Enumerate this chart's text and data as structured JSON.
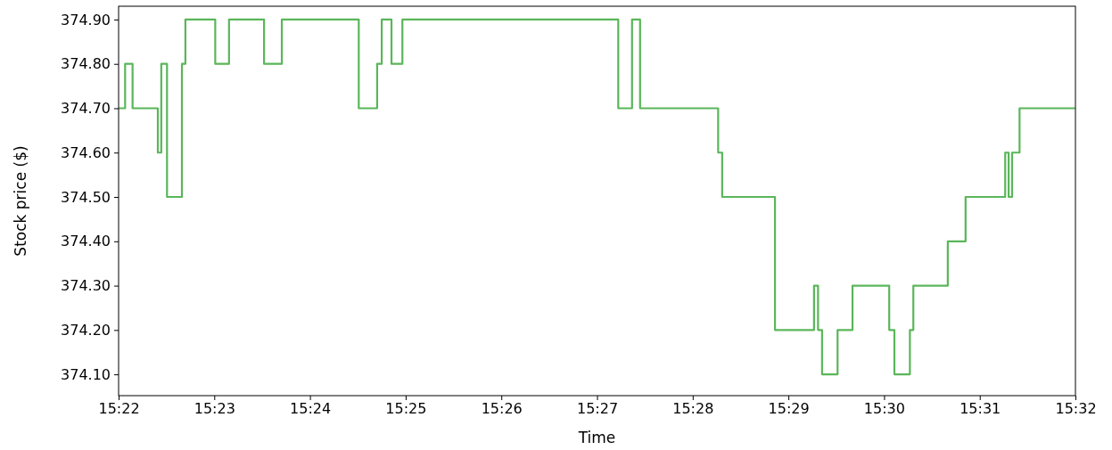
{
  "chart_data": {
    "type": "step",
    "xlabel": "Time",
    "ylabel": "Stock price ($)",
    "color": "#5ab65a",
    "grid": false,
    "line_style": "solid",
    "x": [
      15.3667,
      15.3678,
      15.3691,
      15.3735,
      15.3741,
      15.3751,
      15.3777,
      15.3783,
      15.3835,
      15.3859,
      15.392,
      15.3951,
      15.4085,
      15.4117,
      15.4125,
      15.4142,
      15.4161,
      15.4537,
      15.4561,
      15.4575,
      15.4711,
      15.4718,
      15.481,
      15.4878,
      15.4885,
      15.4892,
      15.4919,
      15.4945,
      15.5009,
      15.5018,
      15.5045,
      15.5051,
      15.5111,
      15.5142,
      15.5211,
      15.5217,
      15.5223,
      15.5236,
      15.5333
    ],
    "values": [
      374.7,
      374.8,
      374.7,
      374.6,
      374.8,
      374.5,
      374.8,
      374.9,
      374.8,
      374.9,
      374.8,
      374.9,
      374.7,
      374.8,
      374.9,
      374.8,
      374.9,
      374.7,
      374.9,
      374.7,
      374.6,
      374.5,
      374.2,
      374.3,
      374.2,
      374.1,
      374.2,
      374.3,
      374.2,
      374.1,
      374.2,
      374.3,
      374.4,
      374.5,
      374.6,
      374.5,
      374.6,
      374.7,
      374.7
    ],
    "xlim": [
      15.366667,
      15.533333
    ],
    "xticks": [
      {
        "value": 15.366667,
        "label": "15:22"
      },
      {
        "value": 15.383333,
        "label": "15:23"
      },
      {
        "value": 15.4,
        "label": "15:24"
      },
      {
        "value": 15.416667,
        "label": "15:25"
      },
      {
        "value": 15.433333,
        "label": "15:26"
      },
      {
        "value": 15.45,
        "label": "15:27"
      },
      {
        "value": 15.466667,
        "label": "15:28"
      },
      {
        "value": 15.483333,
        "label": "15:29"
      },
      {
        "value": 15.5,
        "label": "15:30"
      },
      {
        "value": 15.516667,
        "label": "15:31"
      },
      {
        "value": 15.533333,
        "label": "15:32"
      }
    ],
    "ylim": [
      374.052,
      374.93
    ],
    "yticks": [
      {
        "value": 374.1,
        "label": "374.10"
      },
      {
        "value": 374.2,
        "label": "374.20"
      },
      {
        "value": 374.3,
        "label": "374.30"
      },
      {
        "value": 374.4,
        "label": "374.40"
      },
      {
        "value": 374.5,
        "label": "374.50"
      },
      {
        "value": 374.6,
        "label": "374.60"
      },
      {
        "value": 374.7,
        "label": "374.70"
      },
      {
        "value": 374.8,
        "label": "374.80"
      },
      {
        "value": 374.9,
        "label": "374.90"
      }
    ]
  }
}
